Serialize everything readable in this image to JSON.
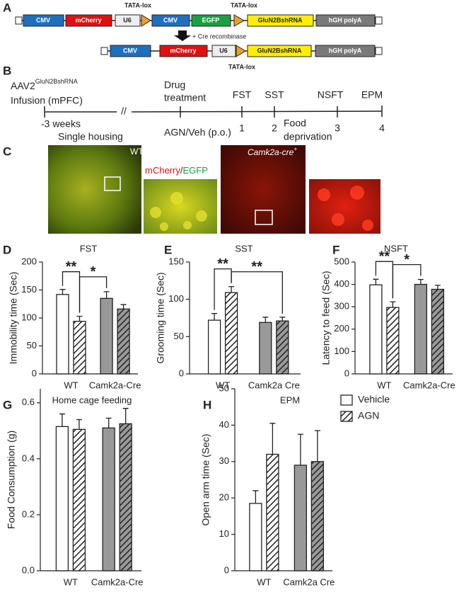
{
  "panel_labels": [
    "A",
    "B",
    "C",
    "D",
    "E",
    "F",
    "G",
    "H"
  ],
  "construct": {
    "original": [
      "CMV",
      "mCherry",
      "U6",
      "CMV",
      "EGFP",
      "GluN2BshRNA",
      "hGH polyA"
    ],
    "lox_label": "TATA-lox",
    "recombinase": "+ Cre recombinase",
    "recombined": [
      "CMV",
      "mCherry",
      "U6",
      "GluN2BshRNA",
      "hGH polyA"
    ]
  },
  "timeline": {
    "vector": "AAV2",
    "vector_sup": "GluN2BshRNA",
    "infusion": "Infusion (mPFC)",
    "drug": [
      "Drug",
      "treatment"
    ],
    "tests": [
      "FST",
      "SST",
      "NSFT",
      "EPM"
    ],
    "start": "-3 weeks",
    "housing": "Single housing",
    "break": "//",
    "dosing": "AGN/Veh (p.o.)",
    "days": [
      "1",
      "2",
      "3",
      "4"
    ],
    "food": [
      "Food",
      "deprivation"
    ]
  },
  "images": {
    "wt_label": "WT",
    "stain": [
      "mCherry",
      "/",
      "EGFP"
    ],
    "cre_label": "Camk2a-cre",
    "cre_sup": "+"
  },
  "chart_data": [
    {
      "type": "bar",
      "title": "FST",
      "ylabel": "Immobility time (Sec)",
      "categories": [
        "WT",
        "Camk2a-Cre"
      ],
      "ylim": [
        0,
        200
      ],
      "yticks": [
        0,
        50,
        100,
        150,
        200
      ],
      "series": [
        {
          "colors": [
            "#ffffff",
            "#999999"
          ],
          "values": [
            142,
            135
          ],
          "errors": [
            9,
            12
          ]
        },
        {
          "colors": [
            "#ffffff",
            "#999999"
          ],
          "hatch": true,
          "values": [
            94,
            116
          ],
          "errors": [
            9,
            8
          ]
        }
      ],
      "annotations": [
        "**",
        "*"
      ]
    },
    {
      "type": "bar",
      "title": "SST",
      "ylabel": "Grooming time (Sec)",
      "categories": [
        "WT",
        "Camk2a Cre"
      ],
      "ylim": [
        0,
        150
      ],
      "yticks": [
        0,
        50,
        100,
        150
      ],
      "series": [
        {
          "colors": [
            "#ffffff",
            "#999999"
          ],
          "values": [
            72,
            69
          ],
          "errors": [
            9,
            7
          ]
        },
        {
          "colors": [
            "#ffffff",
            "#999999"
          ],
          "hatch": true,
          "values": [
            109,
            71
          ],
          "errors": [
            8,
            5
          ]
        }
      ],
      "annotations": [
        "**",
        "**"
      ]
    },
    {
      "type": "bar",
      "title": "NSFT",
      "ylabel": "Latency to feed (Sec)",
      "categories": [
        "WT",
        "Camk2a-Cre"
      ],
      "ylim": [
        0,
        500
      ],
      "yticks": [
        0,
        100,
        200,
        300,
        400,
        500
      ],
      "series": [
        {
          "colors": [
            "#ffffff",
            "#999999"
          ],
          "values": [
            398,
            400
          ],
          "errors": [
            25,
            22
          ]
        },
        {
          "colors": [
            "#ffffff",
            "#999999"
          ],
          "hatch": true,
          "values": [
            297,
            378
          ],
          "errors": [
            25,
            18
          ]
        }
      ],
      "annotations": [
        "**",
        "*"
      ]
    },
    {
      "type": "bar",
      "title": "Home cage feeding",
      "ylabel": "Food Consumption (g)",
      "categories": [
        "WT",
        "Camk2a-Cre"
      ],
      "ylim": [
        0,
        0.65
      ],
      "yticks": [
        {
          "value": 0,
          "label": "0.0"
        },
        0.2,
        0.4,
        0.6
      ],
      "series": [
        {
          "colors": [
            "#ffffff",
            "#999999"
          ],
          "values": [
            0.515,
            0.51
          ],
          "errors": [
            0.045,
            0.035
          ]
        },
        {
          "colors": [
            "#ffffff",
            "#999999"
          ],
          "hatch": true,
          "values": [
            0.505,
            0.525
          ],
          "errors": [
            0.035,
            0.055
          ]
        }
      ]
    },
    {
      "type": "bar",
      "title": "EPM",
      "ylabel": "Open arm time (Sec)",
      "categories": [
        "WT",
        "Camk2a Cre"
      ],
      "ylim": [
        0,
        50
      ],
      "yticks": [
        0,
        10,
        20,
        30,
        40,
        50
      ],
      "series": [
        {
          "name": "Vehicle",
          "colors": [
            "#ffffff",
            "#999999"
          ],
          "values": [
            18.5,
            29
          ],
          "errors": [
            3.5,
            8.5
          ]
        },
        {
          "name": "AGN",
          "colors": [
            "#ffffff",
            "#999999"
          ],
          "hatch": true,
          "values": [
            32,
            30
          ],
          "errors": [
            8.5,
            8.5
          ]
        }
      ]
    }
  ]
}
